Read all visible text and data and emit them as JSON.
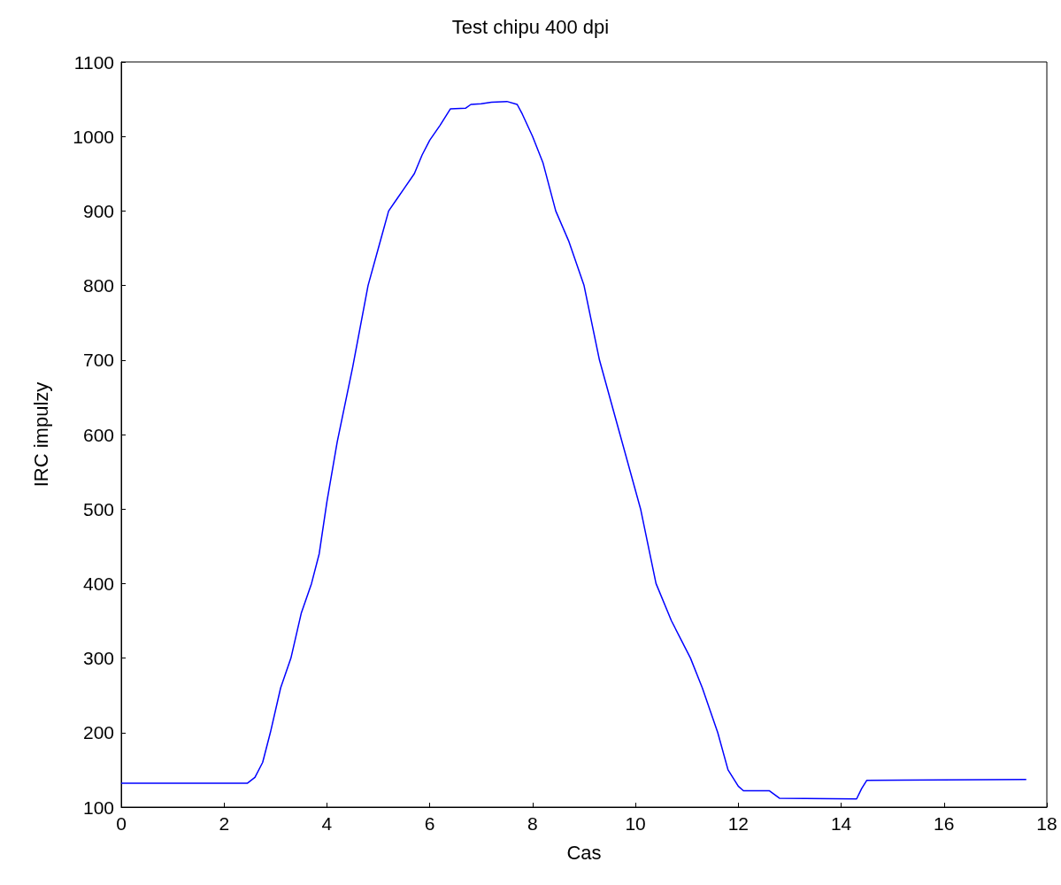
{
  "chart_data": {
    "type": "line",
    "title": "Test chipu 400 dpi",
    "xlabel": "Cas",
    "ylabel": "IRC impulzy",
    "x": [
      0,
      2.45,
      2.6,
      2.75,
      2.9,
      3.1,
      3.3,
      3.5,
      3.7,
      3.85,
      4.0,
      4.2,
      4.5,
      4.8,
      5.0,
      5.2,
      5.35,
      5.5,
      5.7,
      5.85,
      6.0,
      6.2,
      6.4,
      6.7,
      6.8,
      7.0,
      7.2,
      7.5,
      7.7,
      7.8,
      8.0,
      8.2,
      8.45,
      8.7,
      9.0,
      9.3,
      9.7,
      10.1,
      10.4,
      10.7,
      11.07,
      11.3,
      11.6,
      11.8,
      12.0,
      12.1,
      12.6,
      12.8,
      14.3,
      14.4,
      14.5,
      17.6
    ],
    "series": [
      {
        "color": "#0000ff",
        "values": [
          132,
          132,
          140,
          160,
          200,
          260,
          300,
          360,
          400,
          440,
          510,
          590,
          690,
          800,
          850,
          900,
          915,
          930,
          950,
          975,
          995,
          1015,
          1037,
          1038,
          1043,
          1044,
          1046,
          1047,
          1043,
          1030,
          1000,
          965,
          900,
          860,
          800,
          700,
          600,
          500,
          400,
          350,
          300,
          260,
          200,
          150,
          128,
          122,
          122,
          112,
          111,
          125,
          136,
          137
        ]
      }
    ],
    "xlim": [
      0,
      18
    ],
    "xticks": [
      0,
      2,
      4,
      6,
      8,
      10,
      12,
      14,
      16,
      18
    ],
    "ylim": [
      100,
      1100
    ],
    "yticks": [
      100,
      200,
      300,
      400,
      500,
      600,
      700,
      800,
      900,
      1000,
      1100
    ],
    "grid": false,
    "marker": "none",
    "line_style": "solid"
  }
}
